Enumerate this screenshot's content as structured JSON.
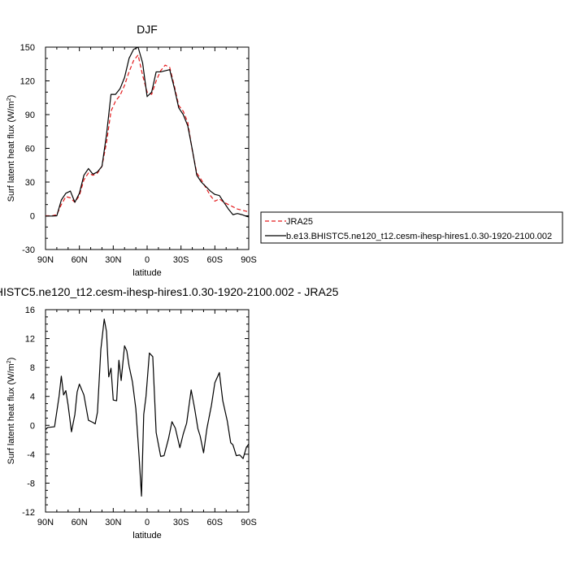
{
  "chart_data": [
    {
      "type": "line",
      "title": "DJF",
      "xlabel": "latitude",
      "ylabel": "Surf latent heat flux (W/m",
      "ylabel_superscript": "2",
      "ylabel_close": ")",
      "xlim": [
        90,
        -90
      ],
      "ylim": [
        -30,
        150
      ],
      "x_tick_labels": [
        "90N",
        "60N",
        "30N",
        "0",
        "30S",
        "60S",
        "90S"
      ],
      "y_tick_labels": [
        "-30",
        "0",
        "30",
        "60",
        "90",
        "120",
        "150"
      ],
      "grid": false,
      "legend_position": "right",
      "series": [
        {
          "name": "JRA25",
          "color": "#e31a1c",
          "dash": true,
          "x": [
            90,
            84,
            80,
            76,
            72,
            68,
            64,
            60,
            56,
            52,
            48,
            44,
            40,
            36,
            32,
            28,
            24,
            20,
            16,
            12,
            8,
            4,
            0,
            -4,
            -8,
            -12,
            -16,
            -20,
            -24,
            -28,
            -32,
            -36,
            -40,
            -44,
            -48,
            -52,
            -56,
            -60,
            -64,
            -68,
            -72,
            -76,
            -80,
            -84,
            -88,
            -90
          ],
          "y": [
            0,
            0,
            1,
            10,
            17,
            16,
            12,
            18,
            32,
            38,
            36,
            38,
            44,
            65,
            93,
            102,
            107,
            116,
            128,
            138,
            143,
            125,
            110,
            108,
            120,
            129,
            134,
            132,
            116,
            98,
            93,
            83,
            58,
            38,
            32,
            25,
            18,
            13,
            15,
            12,
            10,
            8,
            6,
            5,
            4,
            3
          ]
        },
        {
          "name": "b.e13.BHISTC5.ne120_t12.cesm-ihesp-hires1.0.30-1920-2100.002",
          "color": "#000000",
          "dash": false,
          "x": [
            90,
            84,
            80,
            76,
            72,
            68,
            64,
            60,
            56,
            52,
            48,
            44,
            40,
            36,
            32,
            28,
            24,
            20,
            16,
            12,
            8,
            4,
            0,
            -4,
            -8,
            -12,
            -16,
            -20,
            -24,
            -28,
            -32,
            -36,
            -40,
            -44,
            -48,
            -52,
            -56,
            -60,
            -64,
            -68,
            -72,
            -76,
            -80,
            -84,
            -88,
            -90
          ],
          "y": [
            -0.3,
            -0.2,
            0,
            14,
            20,
            22,
            12,
            20,
            36,
            42,
            37,
            39,
            44,
            72,
            108,
            108,
            113,
            123,
            140,
            148,
            150,
            136,
            106,
            110,
            128,
            128,
            129,
            130,
            114,
            96,
            90,
            80,
            59,
            36,
            30,
            26,
            22,
            19,
            18,
            12,
            6,
            1,
            2,
            1,
            -0.5,
            -1
          ]
        }
      ]
    },
    {
      "type": "line",
      "title": "b.e13.BHISTC5.ne120_t12.cesm-ihesp-hires1.0.30-1920-2100.002 - JRA25",
      "xlabel": "latitude",
      "ylabel": "Surf latent heat flux (W/m",
      "ylabel_superscript": "2",
      "ylabel_close": ")",
      "xlim": [
        90,
        -90
      ],
      "ylim": [
        -12,
        16
      ],
      "x_tick_labels": [
        "90N",
        "60N",
        "30N",
        "0",
        "30S",
        "60S",
        "90S"
      ],
      "y_tick_labels": [
        "-12",
        "-8",
        "-4",
        "0",
        "4",
        "8",
        "12",
        "16"
      ],
      "grid": false,
      "series": [
        {
          "color": "#000000",
          "dash": false,
          "x": [
            90,
            88,
            82,
            78,
            76,
            74,
            72,
            70,
            67,
            64,
            62,
            60,
            56,
            52,
            48,
            46,
            44,
            41,
            38,
            36,
            34,
            32,
            30,
            27,
            25,
            23,
            20,
            18,
            16,
            13,
            10,
            7,
            5,
            3,
            1,
            -2,
            -5,
            -8,
            -12,
            -15,
            -19,
            -22,
            -25,
            -29,
            -32,
            -35,
            -39,
            -42,
            -45,
            -47,
            -50,
            -53,
            -57,
            -60,
            -64,
            -67,
            -71,
            -74,
            -76,
            -79,
            -82,
            -85,
            -88,
            -90
          ],
          "y": [
            -0.6,
            -0.3,
            -0.2,
            4.0,
            6.8,
            4.2,
            4.8,
            2.8,
            -0.9,
            1.5,
            4.6,
            5.7,
            4.2,
            0.7,
            0.4,
            0.2,
            1.8,
            10.5,
            14.7,
            13.0,
            6.7,
            7.9,
            3.5,
            3.4,
            9.0,
            6.2,
            11.0,
            10.3,
            8.2,
            6.0,
            2.3,
            -4.6,
            -9.8,
            1.5,
            4.0,
            10.0,
            9.5,
            -1.0,
            -4.3,
            -4.2,
            -1.8,
            0.5,
            -0.4,
            -3.1,
            -1.2,
            0.3,
            4.9,
            2.4,
            -0.5,
            -1.5,
            -3.8,
            -0.4,
            2.8,
            5.9,
            7.3,
            3.4,
            0.6,
            -2.4,
            -2.7,
            -4.2,
            -4.1,
            -4.6,
            -3.0,
            -2.6
          ]
        }
      ]
    }
  ]
}
